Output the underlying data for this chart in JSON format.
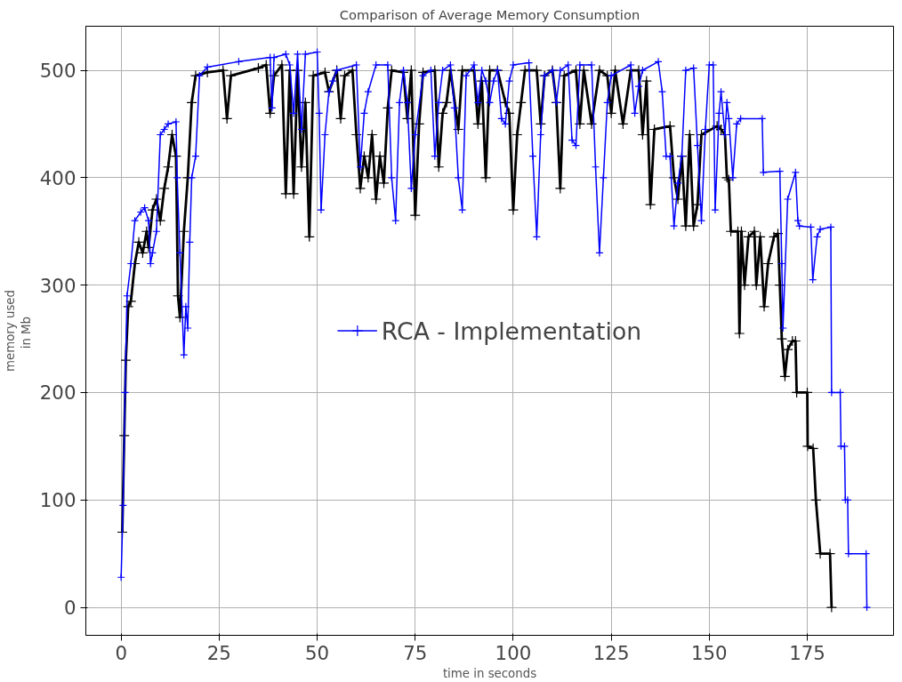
{
  "chart_data": {
    "type": "line",
    "title": "Comparison of Average Memory Consumption",
    "xlabel": "time in seconds",
    "ylabel": "memory used\n in Mb",
    "xlim": [
      -9,
      197
    ],
    "ylim": [
      -26,
      541
    ],
    "xticks": [
      0,
      25,
      50,
      75,
      100,
      125,
      150,
      175
    ],
    "yticks": [
      0,
      100,
      200,
      300,
      400,
      500
    ],
    "grid": true,
    "legend": "center",
    "marker": "cross",
    "line_style": "solid",
    "series": [
      {
        "color": "#000000",
        "x": [
          0.3,
          0.8,
          1.2,
          1.8,
          2.5,
          3.5,
          4.5,
          5.5,
          6.5,
          7,
          8,
          9,
          10,
          11,
          12,
          13,
          14,
          14.5,
          15,
          16,
          17,
          18,
          19,
          22,
          26,
          27,
          28,
          35,
          37,
          38,
          39,
          41,
          42,
          43,
          44,
          45,
          46,
          47,
          48,
          49,
          52,
          53,
          55,
          56,
          57,
          59,
          60,
          61,
          62,
          63,
          64,
          65,
          66,
          67,
          68,
          69,
          72,
          73,
          74,
          75,
          76,
          77,
          80,
          81,
          82,
          83,
          84,
          86,
          87,
          90,
          91,
          92,
          93,
          94,
          96,
          98,
          99,
          100,
          101,
          102,
          103,
          106,
          107,
          108,
          110,
          111,
          112,
          113,
          116,
          117,
          118,
          120,
          122,
          124,
          125,
          126,
          128,
          130,
          132,
          133,
          134,
          135,
          136,
          140,
          141,
          142,
          143,
          144,
          145,
          146,
          147,
          148,
          152,
          153,
          154,
          154.5,
          155,
          155.5,
          157.3,
          157.7,
          158.2,
          159,
          160,
          161.5,
          162,
          163,
          164,
          165,
          166.5,
          167.5,
          168,
          168.5,
          169.3,
          170,
          171.2,
          172,
          172.3,
          175,
          175.1,
          176.5,
          177.2,
          178.3,
          180.8,
          181.2
        ],
        "values": [
          70,
          160,
          230,
          280,
          285,
          320,
          340,
          330,
          350,
          335,
          370,
          380,
          360,
          390,
          410,
          440,
          420,
          290,
          270,
          350,
          400,
          470,
          495,
          498,
          500,
          455,
          495,
          502,
          505,
          460,
          495,
          505,
          385,
          500,
          385,
          500,
          410,
          470,
          345,
          495,
          498,
          480,
          500,
          455,
          495,
          500,
          440,
          390,
          420,
          400,
          440,
          380,
          420,
          395,
          465,
          500,
          498,
          455,
          500,
          365,
          450,
          498,
          500,
          410,
          460,
          470,
          500,
          445,
          500,
          500,
          450,
          490,
          400,
          500,
          500,
          470,
          460,
          370,
          440,
          470,
          500,
          500,
          450,
          495,
          500,
          470,
          390,
          495,
          500,
          450,
          500,
          450,
          500,
          495,
          460,
          500,
          450,
          500,
          500,
          440,
          490,
          375,
          445,
          448,
          400,
          380,
          420,
          355,
          440,
          355,
          375,
          440,
          448,
          445,
          440,
          400,
          398,
          350,
          350,
          255,
          350,
          300,
          345,
          350,
          300,
          345,
          280,
          320,
          345,
          348,
          300,
          250,
          215,
          240,
          248,
          248,
          200,
          200,
          150,
          148,
          100,
          50,
          50,
          0
        ]
      },
      {
        "name": "RCA - Implementation",
        "color": "#0000ff",
        "x": [
          0,
          0.5,
          1,
          1.5,
          2.5,
          3.5,
          5,
          6,
          7,
          7.5,
          8,
          9,
          10,
          11,
          12,
          14,
          14.3,
          15,
          16,
          16.5,
          17,
          17.5,
          18,
          19,
          20,
          22,
          30,
          38,
          38.5,
          39,
          42,
          43,
          44,
          45,
          46,
          47,
          50,
          50.5,
          51,
          52,
          53,
          54,
          55,
          60,
          61,
          62,
          63,
          65,
          68,
          69,
          70,
          71,
          72,
          73,
          74,
          75,
          77,
          79,
          80,
          81,
          82,
          84,
          85,
          86,
          87,
          88,
          90,
          91,
          92,
          93,
          94,
          95,
          96,
          97,
          98,
          99,
          100,
          104,
          105,
          106,
          107,
          108,
          110,
          111,
          112,
          114,
          115,
          116,
          117,
          120,
          121,
          122,
          123,
          124,
          125,
          130,
          131,
          132,
          133,
          137,
          138,
          139,
          140,
          141,
          142,
          143,
          144,
          146,
          147,
          148,
          149,
          150,
          151,
          151.5,
          152.5,
          153,
          154,
          154.5,
          155,
          156,
          157,
          158,
          163.5,
          163.8,
          168,
          168.5,
          168.8,
          170,
          172,
          172.6,
          173,
          175.9,
          176.4,
          177.5,
          178.3,
          181,
          181.2,
          183.4,
          183.6,
          184.5,
          184.7,
          185.3,
          185.5,
          190,
          190.2
        ],
        "values": [
          28,
          95,
          200,
          290,
          320,
          360,
          368,
          372,
          360,
          320,
          330,
          350,
          440,
          445,
          450,
          452,
          400,
          330,
          235,
          280,
          260,
          340,
          400,
          420,
          495,
          503,
          508,
          512,
          465,
          512,
          515,
          505,
          460,
          515,
          445,
          515,
          517,
          460,
          370,
          440,
          480,
          490,
          500,
          505,
          410,
          460,
          480,
          505,
          505,
          400,
          360,
          470,
          500,
          470,
          390,
          440,
          495,
          500,
          420,
          470,
          500,
          505,
          465,
          400,
          370,
          495,
          505,
          470,
          500,
          490,
          470,
          490,
          500,
          455,
          450,
          490,
          505,
          507,
          420,
          345,
          440,
          495,
          500,
          470,
          500,
          505,
          435,
          430,
          505,
          505,
          410,
          330,
          400,
          470,
          495,
          505,
          460,
          485,
          500,
          508,
          480,
          420,
          420,
          355,
          395,
          420,
          500,
          502,
          430,
          360,
          445,
          505,
          505,
          370,
          460,
          480,
          440,
          470,
          455,
          400,
          450,
          455,
          455,
          405,
          406,
          320,
          260,
          380,
          405,
          360,
          355,
          354,
          305,
          345,
          352,
          354,
          200,
          200,
          150,
          150,
          100,
          100,
          50,
          50,
          0
        ]
      }
    ]
  }
}
